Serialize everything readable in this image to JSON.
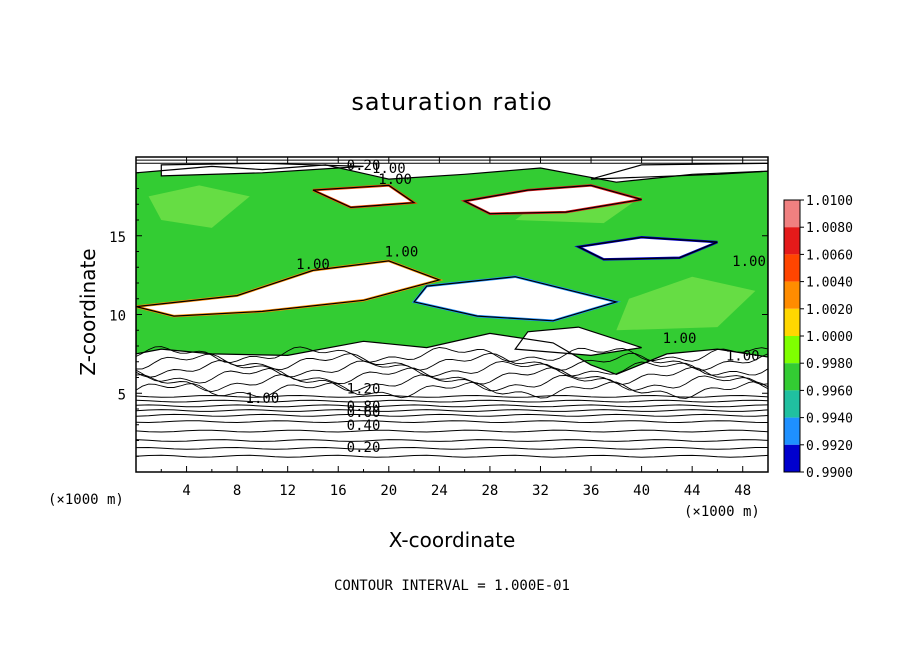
{
  "chart_data": {
    "type": "heatmap",
    "title": "saturation ratio",
    "xlabel": "X-coordinate",
    "ylabel": "Z-coordinate",
    "x_unit": "(×1000 m)",
    "y_unit": "(×1000 m)",
    "xlim": [
      0,
      50
    ],
    "ylim": [
      0,
      20
    ],
    "xticks": [
      4,
      8,
      12,
      16,
      20,
      24,
      28,
      32,
      36,
      40,
      44,
      48
    ],
    "yticks": [
      5,
      10,
      15
    ],
    "footer": "CONTOUR INTERVAL = 1.000E-01",
    "colorbar": {
      "labels": [
        "1.0100",
        "1.0080",
        "1.0060",
        "1.0040",
        "1.0020",
        "1.0000",
        "0.9980",
        "0.9960",
        "0.9940",
        "0.9920",
        "0.9900"
      ],
      "colors": [
        "#f08080",
        "#e41a1a",
        "#ff4500",
        "#ff8c00",
        "#ffd700",
        "#7fff00",
        "#33cc33",
        "#20c0a0",
        "#1e90ff",
        "#0000cd",
        "#5a0a8a"
      ]
    },
    "contour_labels": [
      {
        "text": "0.20",
        "x": 18,
        "y": 19.5
      },
      {
        "text": "1.00",
        "x": 20,
        "y": 19.3
      },
      {
        "text": "1.00",
        "x": 20.5,
        "y": 18.6
      },
      {
        "text": "1.00",
        "x": 21,
        "y": 14
      },
      {
        "text": "1.00",
        "x": 14,
        "y": 13.2
      },
      {
        "text": "1.00",
        "x": 48.5,
        "y": 13.4
      },
      {
        "text": "1.00",
        "x": 43,
        "y": 8.5
      },
      {
        "text": "1.00",
        "x": 48,
        "y": 7.4
      },
      {
        "text": "1.20",
        "x": 18,
        "y": 5.3
      },
      {
        "text": "1.00",
        "x": 10,
        "y": 4.7
      },
      {
        "text": "0.80",
        "x": 18,
        "y": 4.2
      },
      {
        "text": "0.60",
        "x": 18,
        "y": 3.8
      },
      {
        "text": "0.40",
        "x": 18,
        "y": 3.0
      },
      {
        "text": "0.20",
        "x": 18,
        "y": 1.6
      }
    ]
  }
}
